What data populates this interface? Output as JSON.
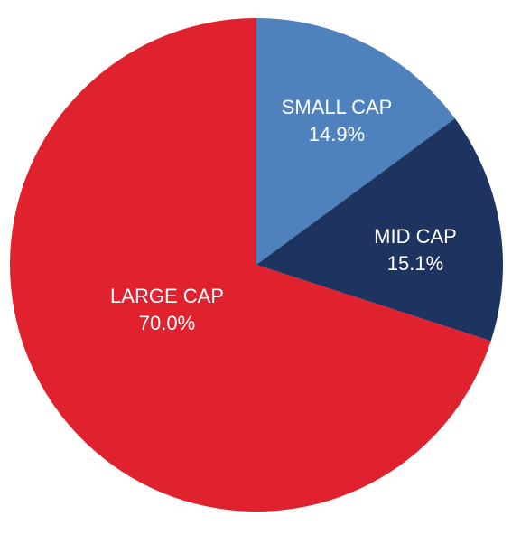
{
  "chart_data": {
    "type": "pie",
    "title": "",
    "start_angle_deg": 0,
    "direction": "clockwise",
    "slices": [
      {
        "name": "SMALL CAP",
        "value": 14.9,
        "value_label": "14.9%",
        "color": "#4f81bd"
      },
      {
        "name": "MID CAP",
        "value": 15.1,
        "value_label": "15.1%",
        "color": "#1d3461"
      },
      {
        "name": "LARGE CAP",
        "value": 70.0,
        "value_label": "70.0%",
        "color": "#e0212e"
      }
    ]
  }
}
